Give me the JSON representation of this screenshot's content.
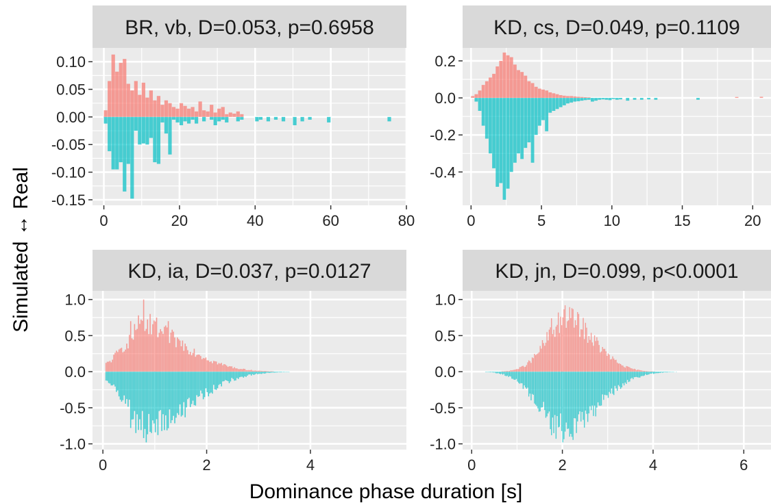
{
  "figure": {
    "xlabel": "Dominance phase duration [s]",
    "ylabel": "Simulated ↔ Real"
  },
  "colors": {
    "real": "#F8766D",
    "simulated": "#00BFC4",
    "panel_background": "#EBEBEB",
    "strip_background": "#D9D9D9",
    "grid": "#FFFFFF"
  },
  "chart_data": [
    {
      "type": "bar",
      "title": "BR, vb, D=0.053, p=0.6958",
      "xlim": [
        -3,
        80
      ],
      "ylim": [
        -0.16,
        0.125
      ],
      "xticks": [
        0,
        20,
        40,
        60,
        80
      ],
      "xtick_labels": [
        "0",
        "20",
        "40",
        "60",
        "80"
      ],
      "yticks": [
        0.1,
        0.05,
        0.0,
        -0.05,
        -0.1,
        -0.15
      ],
      "ytick_labels": [
        "0.10",
        "0.05",
        "0.00",
        "-0.05",
        "-0.10",
        "-0.15"
      ],
      "bin_width": 1,
      "series": [
        {
          "name": "Real",
          "x": [
            0.5,
            1.5,
            2.5,
            3.5,
            4.5,
            5.5,
            6.5,
            7.5,
            8.5,
            9.5,
            10.5,
            11.5,
            12.5,
            13.5,
            14.5,
            15.5,
            16.5,
            17.5,
            18.5,
            19.5,
            20.5,
            21.5,
            22.5,
            23.5,
            24.5,
            25.5,
            26.5,
            27.5,
            28.5,
            29.5,
            30.5,
            31.5,
            32.5,
            33.5,
            34.5,
            35.5,
            36.5
          ],
          "values": [
            0.012,
            0.065,
            0.113,
            0.082,
            0.098,
            0.105,
            0.06,
            0.048,
            0.065,
            0.04,
            0.062,
            0.035,
            0.048,
            0.03,
            0.038,
            0.022,
            0.03,
            0.025,
            0.018,
            0.015,
            0.025,
            0.02,
            0.015,
            0.018,
            0.01,
            0.028,
            0.012,
            0.01,
            0.022,
            0.008,
            0.015,
            0.018,
            0.005,
            0.008,
            0.006,
            0.01,
            0.005
          ]
        },
        {
          "name": "Simulated",
          "x": [
            0.5,
            1.5,
            2.5,
            3.5,
            4.5,
            5.5,
            6.5,
            7.5,
            8.5,
            9.5,
            10.5,
            11.5,
            12.5,
            13.5,
            14.5,
            15.5,
            16.5,
            17.5,
            18.5,
            19.5,
            20.5,
            21.5,
            22.5,
            23.5,
            24.5,
            26.5,
            28.5,
            29.5,
            30.5,
            31.5,
            32.5,
            35.5,
            36.5,
            40.5,
            41.5,
            43.5,
            45.5,
            47.5,
            50.5,
            52.5,
            54.5,
            59.5,
            75.5
          ],
          "values": [
            -0.012,
            -0.062,
            -0.095,
            -0.095,
            -0.082,
            -0.135,
            -0.085,
            -0.148,
            -0.025,
            -0.05,
            -0.048,
            -0.05,
            -0.038,
            -0.082,
            -0.085,
            -0.01,
            -0.03,
            -0.068,
            -0.005,
            -0.01,
            -0.015,
            -0.008,
            -0.012,
            -0.005,
            -0.012,
            -0.008,
            -0.005,
            -0.015,
            -0.008,
            -0.005,
            -0.01,
            -0.008,
            -0.005,
            -0.008,
            -0.005,
            -0.008,
            -0.005,
            -0.008,
            -0.015,
            -0.008,
            -0.005,
            -0.01,
            -0.008
          ]
        }
      ]
    },
    {
      "type": "bar",
      "title": "KD, cs, D=0.049, p=0.1109",
      "xlim": [
        -0.6,
        21.3
      ],
      "ylim": [
        -0.58,
        0.27
      ],
      "xticks": [
        0,
        5,
        10,
        15,
        20
      ],
      "xtick_labels": [
        "0",
        "5",
        "10",
        "15",
        "20"
      ],
      "yticks": [
        0.2,
        0.0,
        -0.2,
        -0.4
      ],
      "ytick_labels": [
        "0.2",
        "0.0",
        "-0.2",
        "-0.4"
      ],
      "bin_width": 0.25,
      "series": [
        {
          "name": "Real",
          "x": [
            0.125,
            0.375,
            0.625,
            0.875,
            1.125,
            1.375,
            1.625,
            1.875,
            2.125,
            2.375,
            2.625,
            2.875,
            3.125,
            3.375,
            3.625,
            3.875,
            4.125,
            4.375,
            4.625,
            4.875,
            5.125,
            5.375,
            5.625,
            5.875,
            6.125,
            6.375,
            6.625,
            6.875,
            7.125,
            7.375,
            7.625,
            7.875,
            8.125,
            8.375,
            18.875,
            20.625
          ],
          "values": [
            0.01,
            0.02,
            0.04,
            0.07,
            0.09,
            0.11,
            0.13,
            0.17,
            0.2,
            0.245,
            0.23,
            0.22,
            0.18,
            0.15,
            0.14,
            0.12,
            0.09,
            0.08,
            0.06,
            0.05,
            0.045,
            0.04,
            0.03,
            0.025,
            0.02,
            0.015,
            0.012,
            0.01,
            0.01,
            0.008,
            0.006,
            0.005,
            0.004,
            0.003,
            0.005,
            0.006
          ]
        },
        {
          "name": "Simulated",
          "x": [
            0.375,
            0.625,
            0.875,
            1.125,
            1.375,
            1.625,
            1.875,
            2.125,
            2.375,
            2.625,
            2.875,
            3.125,
            3.375,
            3.625,
            3.875,
            4.125,
            4.375,
            4.625,
            4.875,
            5.125,
            5.375,
            5.625,
            5.875,
            6.125,
            6.375,
            6.625,
            6.875,
            7.125,
            7.375,
            7.625,
            7.875,
            8.125,
            8.375,
            8.625,
            8.875,
            9.125,
            9.375,
            9.625,
            9.875,
            10.125,
            10.375,
            10.625,
            11.125,
            11.625,
            12.125,
            12.625,
            13.125,
            16.125
          ],
          "values": [
            -0.02,
            -0.07,
            -0.15,
            -0.22,
            -0.3,
            -0.38,
            -0.48,
            -0.46,
            -0.55,
            -0.49,
            -0.4,
            -0.35,
            -0.3,
            -0.33,
            -0.27,
            -0.24,
            -0.35,
            -0.2,
            -0.15,
            -0.12,
            -0.18,
            -0.08,
            -0.07,
            -0.06,
            -0.05,
            -0.04,
            -0.03,
            -0.025,
            -0.02,
            -0.018,
            -0.015,
            -0.012,
            -0.01,
            -0.02,
            -0.015,
            -0.01,
            -0.008,
            -0.01,
            -0.012,
            -0.006,
            -0.01,
            -0.008,
            -0.015,
            -0.01,
            -0.01,
            -0.008,
            -0.01,
            -0.01
          ]
        }
      ]
    },
    {
      "type": "bar",
      "title": "KD, ia, D=0.037, p=0.0127",
      "xlim": [
        -0.2,
        5.85
      ],
      "ylim": [
        -1.08,
        1.12
      ],
      "xticks": [
        0,
        2,
        4
      ],
      "xtick_labels": [
        "0",
        "2",
        "4"
      ],
      "yticks": [
        1.0,
        0.5,
        0.0,
        -0.5,
        -1.0
      ],
      "ytick_labels": [
        "1.0",
        "0.5",
        "0.0",
        "-0.5",
        "-1.0"
      ],
      "bin_width": 0.025,
      "series": [
        {
          "name": "Real",
          "smooth": {
            "peak_x": 0.8,
            "spread_left": 0.4,
            "spread_right": 0.8,
            "amplitude": 0.6,
            "x_range": [
              0.05,
              3.6
            ]
          },
          "peaks": [
            {
              "x": 0.8,
              "value": 1.0
            },
            {
              "x": 0.7,
              "value": 0.78
            },
            {
              "x": 0.92,
              "value": 0.8
            },
            {
              "x": 1.05,
              "value": 0.75
            },
            {
              "x": 0.55,
              "value": 0.7
            },
            {
              "x": 1.25,
              "value": 0.7
            },
            {
              "x": 0.62,
              "value": 0.66
            }
          ]
        },
        {
          "name": "Simulated",
          "smooth": {
            "peak_x": 0.85,
            "spread_left": 0.4,
            "spread_right": 0.85,
            "amplitude": 0.76,
            "x_range": [
              0.05,
              5.6
            ]
          },
          "peaks": [
            {
              "x": 0.85,
              "value": -0.98
            },
            {
              "x": 0.78,
              "value": -0.92
            },
            {
              "x": 0.65,
              "value": -0.85
            },
            {
              "x": 0.95,
              "value": -0.85
            },
            {
              "x": 0.55,
              "value": -0.78
            }
          ]
        }
      ]
    },
    {
      "type": "bar",
      "title": "KD, jn, D=0.099, p<0.0001",
      "xlim": [
        -0.2,
        6.6
      ],
      "ylim": [
        -1.08,
        1.12
      ],
      "xticks": [
        0,
        2,
        4,
        6
      ],
      "xtick_labels": [
        "0",
        "2",
        "4",
        "6"
      ],
      "yticks": [
        1.0,
        0.5,
        0.0,
        -0.5,
        -1.0
      ],
      "ytick_labels": [
        "1.0",
        "0.5",
        "0.0",
        "-0.5",
        "-1.0"
      ],
      "bin_width": 0.025,
      "series": [
        {
          "name": "Real",
          "smooth": {
            "peak_x": 2.1,
            "spread_left": 0.45,
            "spread_right": 0.6,
            "amplitude": 0.74,
            "x_range": [
              0.2,
              6.5
            ]
          },
          "peaks": [
            {
              "x": 2.05,
              "value": 0.92
            },
            {
              "x": 2.2,
              "value": 0.88
            },
            {
              "x": 1.9,
              "value": 0.82
            },
            {
              "x": 2.35,
              "value": 0.8
            },
            {
              "x": 1.75,
              "value": 0.74
            }
          ]
        },
        {
          "name": "Simulated",
          "smooth": {
            "peak_x": 2.05,
            "spread_left": 0.55,
            "spread_right": 0.75,
            "amplitude": 0.8,
            "x_range": [
              0.3,
              6.0
            ]
          },
          "peaks": [
            {
              "x": 2.0,
              "value": -0.98
            },
            {
              "x": 1.85,
              "value": -0.93
            },
            {
              "x": 2.15,
              "value": -0.9
            },
            {
              "x": 1.75,
              "value": -0.88
            },
            {
              "x": 2.3,
              "value": -0.85
            }
          ]
        }
      ]
    }
  ]
}
